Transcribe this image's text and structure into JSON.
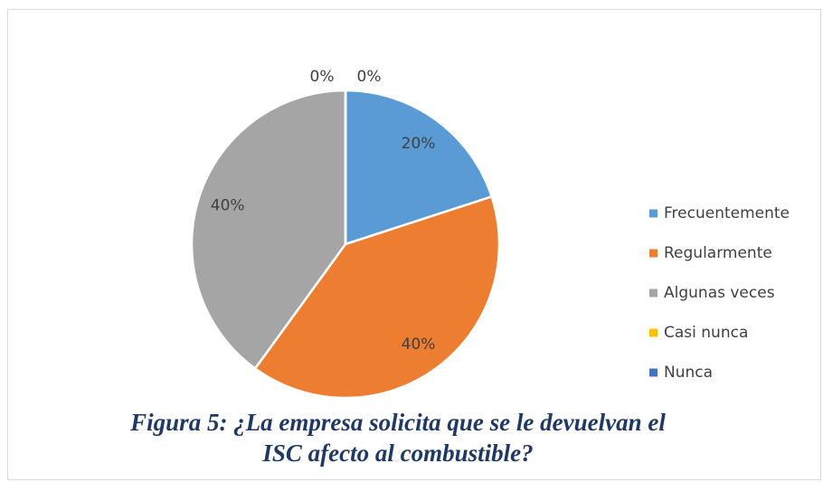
{
  "chart_data": {
    "type": "pie",
    "title": "Figura 5: ¿La empresa solicita que se le devuelvan el ISC afecto al combustible?",
    "categories": [
      "Frecuentemente",
      "Regularmente",
      "Algunas veces",
      "Casi nunca",
      "Nunca"
    ],
    "values": [
      20,
      40,
      40,
      0,
      0
    ],
    "value_labels": [
      "20%",
      "40%",
      "40%",
      "0%",
      "0%"
    ],
    "colors": [
      "#5b9bd5",
      "#ed7d31",
      "#a5a5a5",
      "#ffc000",
      "#4472c4"
    ],
    "legend": "right"
  }
}
